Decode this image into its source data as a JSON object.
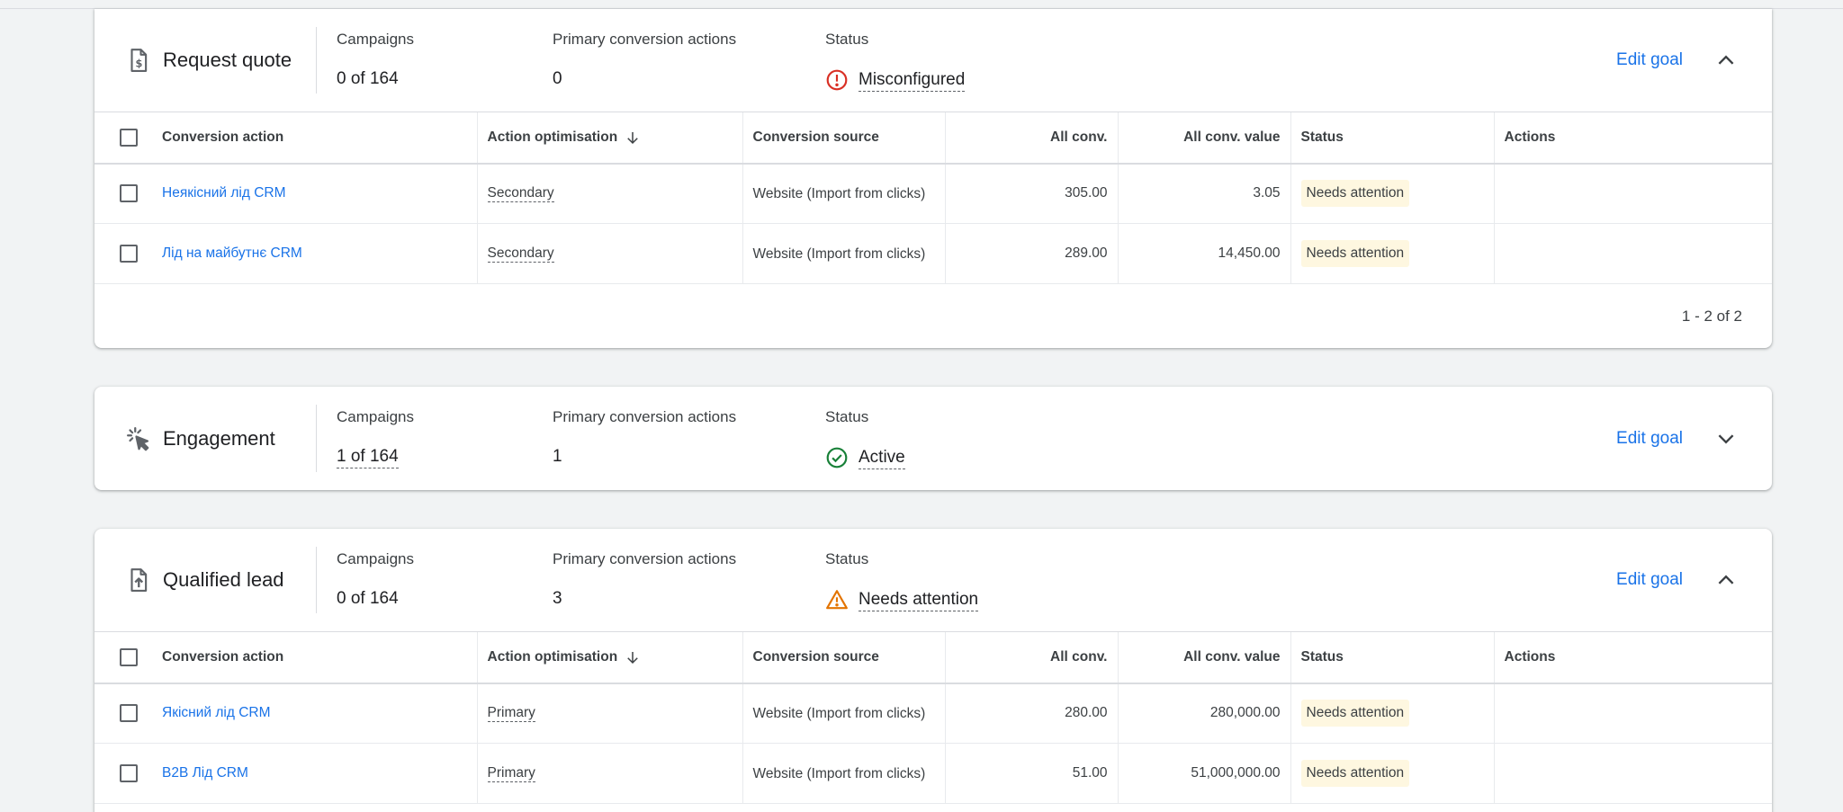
{
  "metric_labels": {
    "campaigns": "Campaigns",
    "primary": "Primary conversion actions",
    "status": "Status"
  },
  "edit_goal_label": "Edit goal",
  "table_headers": {
    "conversion_action": "Conversion action",
    "action_optimisation": "Action optimisation",
    "conversion_source": "Conversion source",
    "all_conv": "All conv.",
    "all_conv_value": "All conv. value",
    "status": "Status",
    "actions": "Actions"
  },
  "goals": [
    {
      "name": "Request quote",
      "icon": "quote-doc-icon",
      "campaigns": "0 of 164",
      "primary_actions": "0",
      "status": "Misconfigured",
      "status_icon": "error-icon",
      "status_color": "#d93025",
      "expanded": true,
      "rows": [
        {
          "action": "Неякісний лід CRM",
          "optimisation": "Secondary",
          "source": "Website (Import from clicks)",
          "all_conv": "305.00",
          "all_conv_value": "3.05",
          "status": "Needs attention"
        },
        {
          "action": "Лід на майбутнє CRM",
          "optimisation": "Secondary",
          "source": "Website (Import from clicks)",
          "all_conv": "289.00",
          "all_conv_value": "14,450.00",
          "status": "Needs attention"
        }
      ],
      "pagination": "1 - 2 of 2"
    },
    {
      "name": "Engagement",
      "icon": "engagement-click-icon",
      "campaigns": "1 of 164",
      "primary_actions": "1",
      "status": "Active",
      "status_icon": "check-circle-icon",
      "status_color": "#188038",
      "expanded": false
    },
    {
      "name": "Qualified lead",
      "icon": "qualified-lead-doc-icon",
      "campaigns": "0 of 164",
      "primary_actions": "3",
      "status": "Needs attention",
      "status_icon": "warning-icon",
      "status_color": "#e37400",
      "expanded": true,
      "rows": [
        {
          "action": "Якісний лід CRM",
          "optimisation": "Primary",
          "source": "Website (Import from clicks)",
          "all_conv": "280.00",
          "all_conv_value": "280,000.00",
          "status": "Needs attention"
        },
        {
          "action": "B2B Лід CRM",
          "optimisation": "Primary",
          "source": "Website (Import from clicks)",
          "all_conv": "51.00",
          "all_conv_value": "51,000,000.00",
          "status": "Needs attention"
        }
      ]
    }
  ]
}
